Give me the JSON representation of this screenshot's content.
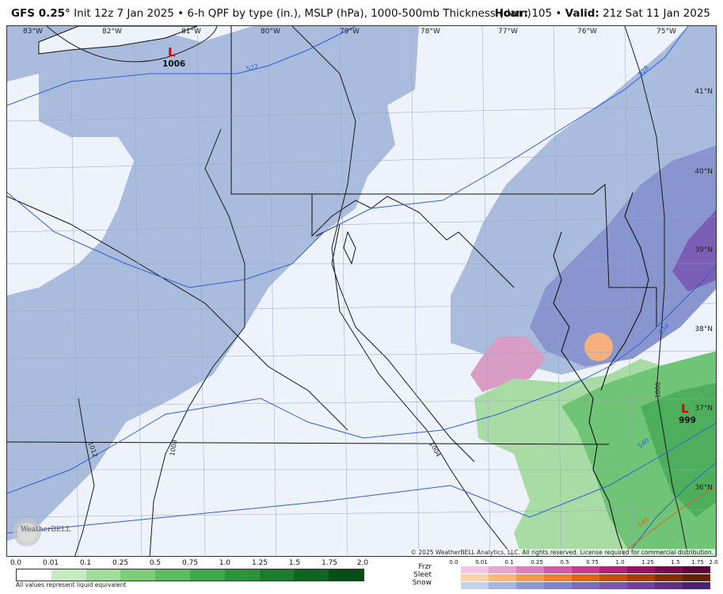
{
  "header": {
    "model": "GFS 0.25",
    "degree": "°",
    "init": " Init 12z 7 Jan 2025 • 6-h QPF by type (in.), MSLP (hPa), 1000-500mb Thickness (dam)",
    "hour_label": "Hour:",
    "hour_value": " 105 • ",
    "valid_label": "Valid:",
    "valid_value": " 21z Sat 11 Jan 2025"
  },
  "map": {
    "longitudes": [
      "83°W",
      "82°W",
      "81°W",
      "80°W",
      "79°W",
      "78°W",
      "77°W",
      "76°W",
      "75°W"
    ],
    "latitudes": [
      "41°N",
      "40°N",
      "39°N",
      "38°N",
      "37°N",
      "36°N"
    ],
    "pressure_centers": [
      {
        "label": "L",
        "value": "1006"
      },
      {
        "label": "L",
        "value": "999"
      }
    ],
    "isobar_labels": [
      "1012",
      "1008",
      "1004",
      "1000"
    ],
    "thickness_labels": [
      "522",
      "528",
      "534",
      "540",
      "546"
    ],
    "copyright": "© 2025 WeatherBELL Analytics, LLC. All rights reserved. License required for commercial distribution.",
    "logo_text": "WeatherBELL"
  },
  "legend": {
    "rain_ticks": [
      "0.0",
      "0.01",
      "0.1",
      "0.25",
      "0.5",
      "0.75",
      "1.0",
      "1.25",
      "1.5",
      "1.75",
      "2.0"
    ],
    "rain_colors": [
      "#ffffff",
      "#c6ebc0",
      "#a2dc9a",
      "#7fcc7a",
      "#5cbc5f",
      "#3fa84a",
      "#2b943a",
      "#1c7d2d",
      "#0f6623",
      "#064d18"
    ],
    "note": "All values represent liquid equivalent",
    "ptype_labels": [
      "Frzr",
      "Sleet",
      "Snow"
    ],
    "ptype_ticks": [
      "0.0",
      "0.01",
      "0.1",
      "0.25",
      "0.5",
      "0.75",
      "1.0",
      "1.25",
      "1.5",
      "1.75",
      "2.0"
    ],
    "frzr_colors": [
      "#f3c6e4",
      "#e9a3cf",
      "#de7fbb",
      "#d35aa6",
      "#c73a8f",
      "#b12277",
      "#961260",
      "#7a0a4b",
      "#5e0638"
    ],
    "sleet_colors": [
      "#fbd2a8",
      "#f8b679",
      "#f59a4d",
      "#ef7f2a",
      "#e06512",
      "#c54f0a",
      "#a63c07",
      "#852d05",
      "#652103"
    ],
    "snow_colors": [
      "#c6d1eb",
      "#a7b6de",
      "#8b9bd0",
      "#7d84c6",
      "#7b6dbb",
      "#7a56ae",
      "#6f409c",
      "#5f2f86",
      "#4c216d"
    ]
  }
}
